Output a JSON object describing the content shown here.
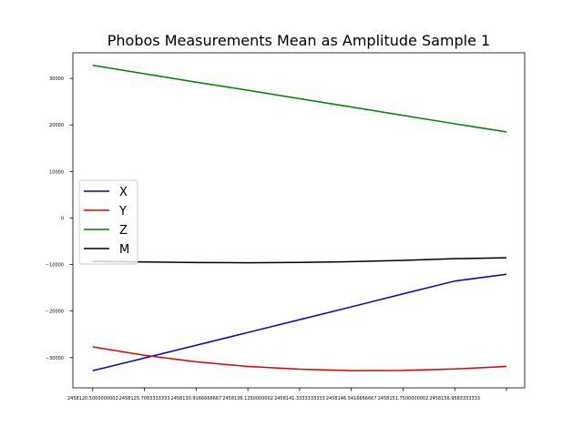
{
  "chart_data": {
    "type": "line",
    "title": "Phobos Measurements Mean as Amplitude Sample 1",
    "xlabel": "",
    "ylabel": "",
    "x_ticks": [
      "2458120.5000000002",
      "2458125.7083333333",
      "2458130.9166666667",
      "2458136.1250000002",
      "2458141.3333333333",
      "2458146.5416666667",
      "2458151.7500000002",
      "2458156.9583333333"
    ],
    "x": [
      2458120.5,
      2458125.7083333335,
      2458130.9166666665,
      2458136.125,
      2458141.3333333335,
      2458146.5416666665,
      2458151.75,
      2458156.9583333335,
      2458162.1666666665
    ],
    "xlim": [
      2458118.5,
      2458164.0
    ],
    "ylim": [
      -36500,
      35500
    ],
    "y_ticks": [
      -30000,
      -20000,
      -10000,
      0,
      10000,
      20000,
      30000
    ],
    "y_tick_labels": [
      "−30000",
      "−20000",
      "−10000",
      "0",
      "10000",
      "20000",
      "30000"
    ],
    "grid": false,
    "legend_position": "center-left",
    "series": [
      {
        "name": "X",
        "color": "#0000cc",
        "values": [
          -32800,
          -30100,
          -27350,
          -24600,
          -21850,
          -19100,
          -16300,
          -13550,
          -12100
        ]
      },
      {
        "name": "Y",
        "color": "#dd0000",
        "values": [
          -27700,
          -29500,
          -30900,
          -31900,
          -32500,
          -32800,
          -32750,
          -32450,
          -31900
        ]
      },
      {
        "name": "Z",
        "color": "#008000",
        "values": [
          32800,
          31000,
          29200,
          27450,
          25650,
          23850,
          22050,
          20250,
          18500
        ]
      },
      {
        "name": "M",
        "color": "#000000",
        "values": [
          -9300,
          -9450,
          -9580,
          -9620,
          -9560,
          -9380,
          -9100,
          -8750,
          -8550
        ]
      }
    ]
  }
}
